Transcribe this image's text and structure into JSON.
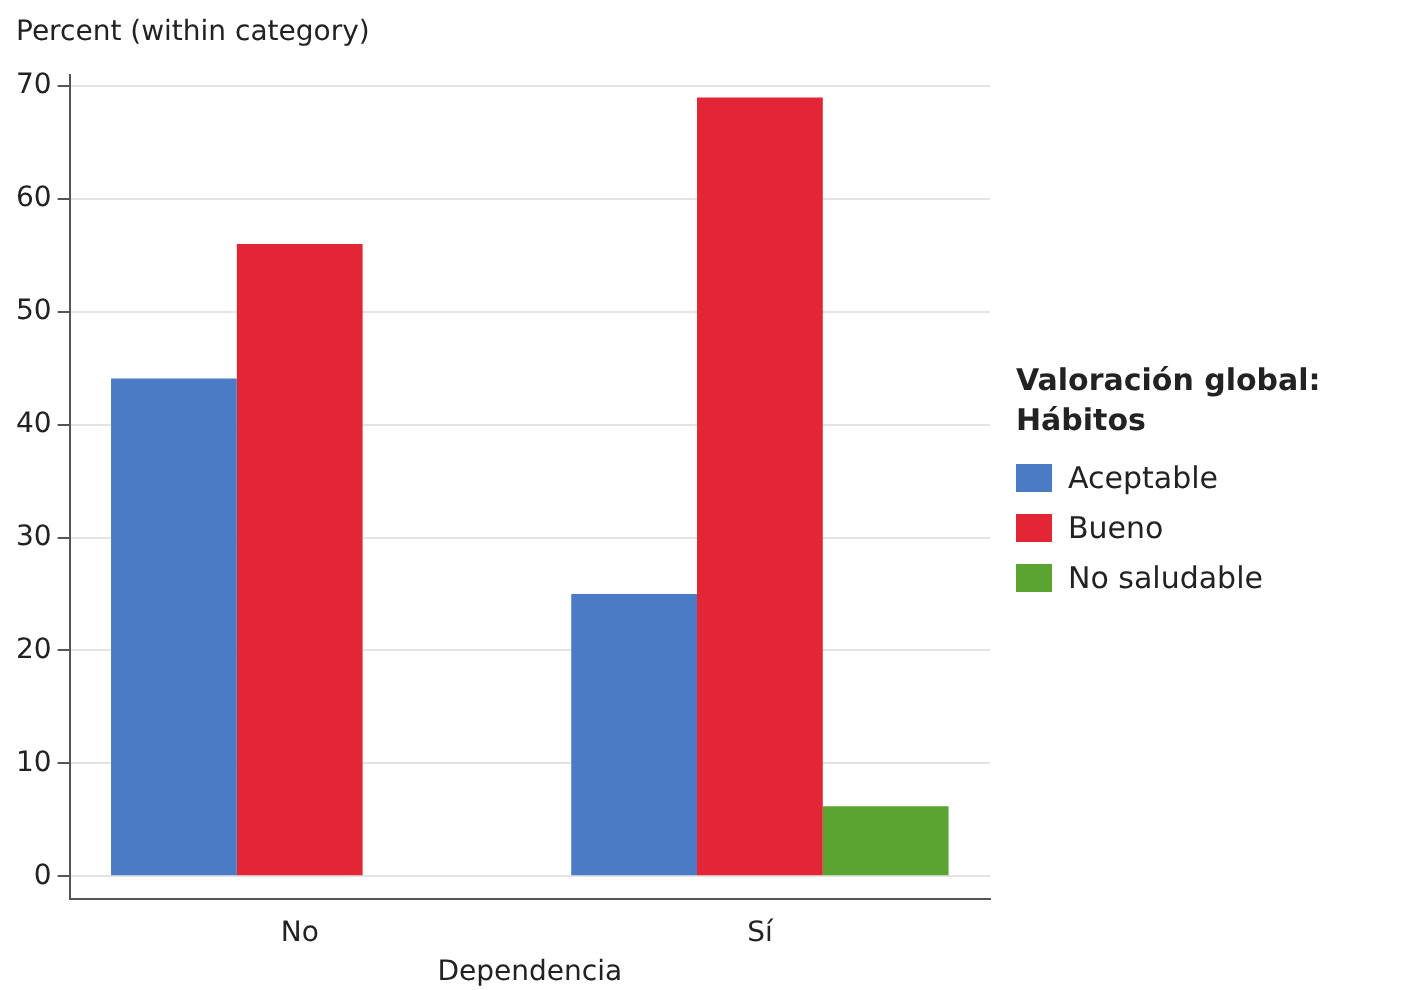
{
  "chart_data": {
    "type": "bar",
    "xlabel": "Dependencia",
    "ylabel": "Percent (within category)",
    "legend_title": "Valoración global: Hábitos",
    "categories": [
      "No",
      "Sí"
    ],
    "series": [
      {
        "name": "Aceptable",
        "color": "#4a7bc4",
        "values": [
          44.1,
          25
        ]
      },
      {
        "name": "Bueno",
        "color": "#e32636",
        "values": [
          56,
          69
        ]
      },
      {
        "name": "No saludable",
        "color": "#5aa532",
        "values": [
          null,
          6.2
        ]
      }
    ],
    "ylim": [
      -2,
      71
    ],
    "yticks": [
      0,
      10,
      20,
      30,
      40,
      50,
      60,
      70
    ],
    "grid": "y",
    "legend": "right"
  }
}
